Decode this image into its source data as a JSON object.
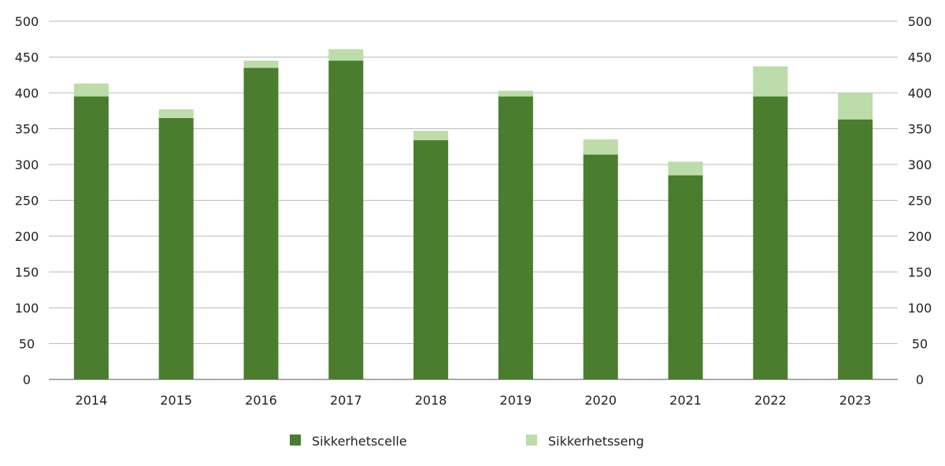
{
  "chart_data": {
    "type": "bar",
    "stacked": true,
    "categories": [
      "2014",
      "2015",
      "2016",
      "2017",
      "2018",
      "2019",
      "2020",
      "2021",
      "2022",
      "2023"
    ],
    "series": [
      {
        "name": "Sikkerhetscelle",
        "color": "#4a7d2e",
        "values": [
          395,
          365,
          435,
          445,
          334,
          395,
          314,
          285,
          395,
          363
        ]
      },
      {
        "name": "Sikkerhetsseng",
        "color": "#bcdcaa",
        "values": [
          18,
          12,
          10,
          16,
          13,
          8,
          21,
          19,
          42,
          37
        ]
      }
    ],
    "ylim": [
      0,
      500
    ],
    "yticks": [
      0,
      50,
      100,
      150,
      200,
      250,
      300,
      350,
      400,
      450,
      500
    ],
    "right_axis": true,
    "grid": true,
    "legend": "bottom",
    "title": "",
    "xlabel": "",
    "ylabel": ""
  }
}
